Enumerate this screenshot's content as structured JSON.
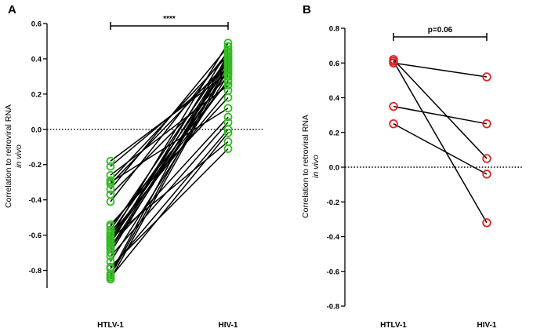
{
  "chart_data": [
    {
      "panel_label": "A",
      "type": "paired-dot",
      "categories": [
        "HTLV-1",
        "HIV-1"
      ],
      "ylabel": "Correlation to retroviral RNA",
      "ylabel_italic": "in vivo",
      "ylim": [
        -0.9,
        0.6
      ],
      "yticks": [
        0.6,
        0.4,
        0.2,
        0.0,
        -0.2,
        -0.4,
        -0.6,
        -0.8
      ],
      "ytick_labels": [
        "0.6",
        "0.4",
        "0.2",
        "0.0",
        "-0.2",
        "-0.4",
        "-0.6",
        "-0.8"
      ],
      "significance": "****",
      "reference_line": 0,
      "marker_color": "#33bb22",
      "pairs": [
        [
          -0.18,
          0.32
        ],
        [
          -0.21,
          0.35
        ],
        [
          -0.26,
          0.25
        ],
        [
          -0.29,
          0.42
        ],
        [
          -0.31,
          0.38
        ],
        [
          -0.34,
          0.47
        ],
        [
          -0.37,
          0.3
        ],
        [
          -0.41,
          0.44
        ],
        [
          -0.54,
          0.18
        ],
        [
          -0.57,
          0.41
        ],
        [
          -0.59,
          0.36
        ],
        [
          -0.6,
          0.22
        ],
        [
          -0.61,
          0.49
        ],
        [
          -0.62,
          0.33
        ],
        [
          -0.63,
          0.28
        ],
        [
          -0.64,
          0.4
        ],
        [
          -0.65,
          0.45
        ],
        [
          -0.66,
          0.07
        ],
        [
          -0.67,
          0.37
        ],
        [
          -0.68,
          0.34
        ],
        [
          -0.7,
          0.39
        ],
        [
          -0.72,
          0.04
        ],
        [
          -0.75,
          0.31
        ],
        [
          -0.79,
          0.0
        ],
        [
          -0.82,
          0.43
        ],
        [
          -0.83,
          0.37
        ],
        [
          -0.84,
          -0.02
        ],
        [
          -0.85,
          0.35
        ],
        [
          -0.78,
          -0.11
        ],
        [
          -0.62,
          -0.07
        ],
        [
          -0.55,
          0.27
        ],
        [
          -0.3,
          0.12
        ]
      ]
    },
    {
      "panel_label": "B",
      "type": "paired-dot",
      "categories": [
        "HTLV-1",
        "HIV-1"
      ],
      "ylabel": "Correlation to retroviral RNA",
      "ylabel_italic": "in vivo",
      "ylim": [
        -0.8,
        0.8
      ],
      "yticks": [
        0.8,
        0.6,
        0.4,
        0.2,
        0.0,
        -0.2,
        -0.4,
        -0.6,
        -0.8
      ],
      "ytick_labels": [
        "0.8",
        "0.6",
        "0.4",
        "0.2",
        "0.0",
        "-0.2",
        "-0.4",
        "-0.6",
        "-0.8"
      ],
      "significance": "p=0.06",
      "reference_line": 0,
      "marker_color": "#dd2222",
      "pairs": [
        [
          0.62,
          0.05
        ],
        [
          0.61,
          -0.32
        ],
        [
          0.6,
          0.52
        ],
        [
          0.35,
          0.25
        ],
        [
          0.25,
          -0.04
        ]
      ]
    }
  ]
}
